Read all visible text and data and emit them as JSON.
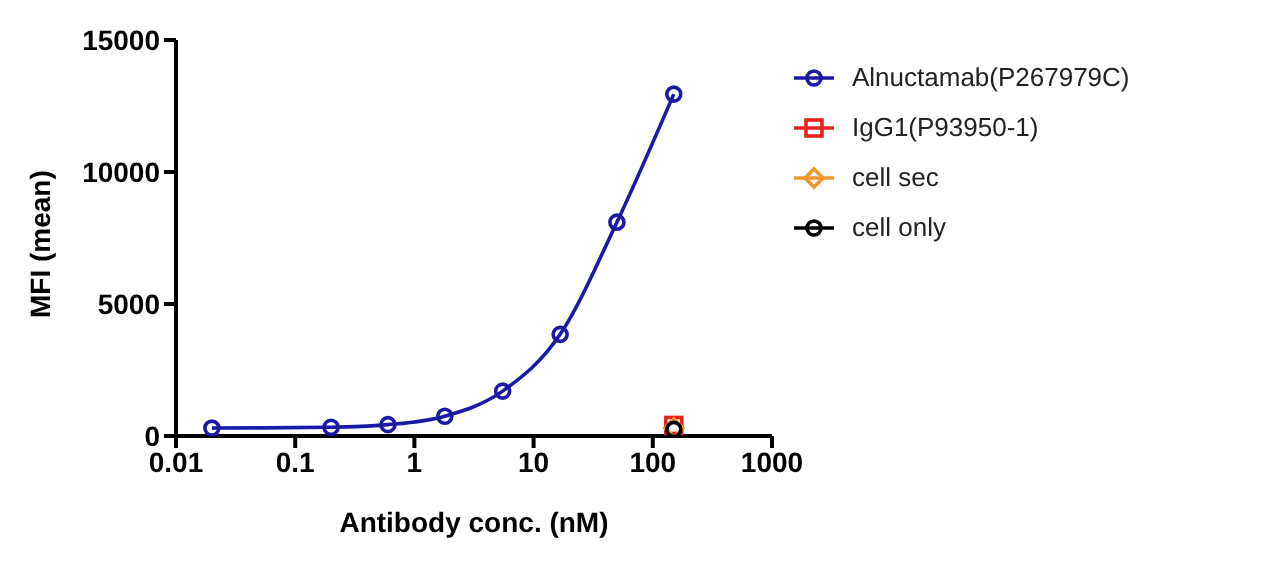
{
  "chart_data": {
    "type": "line",
    "xlabel": "Antibody conc. (nM)",
    "ylabel": "MFI (mean)",
    "log": "x",
    "xlim": [
      0.01,
      1000
    ],
    "xticks": [
      0.01,
      0.1,
      1,
      10,
      100,
      1000
    ],
    "ylim": [
      0,
      15000
    ],
    "yticks": [
      0,
      5000,
      10000,
      15000
    ],
    "grid": false,
    "legend": "right",
    "line_style": "solid",
    "series": [
      {
        "name": "Alnuctamab(P267979C)",
        "color": "#1a1aa6",
        "marker": "circle",
        "x": [
          0.02,
          0.2,
          0.6,
          1.8,
          5.5,
          16.7,
          50,
          150
        ],
        "values": [
          300,
          330,
          430,
          750,
          1700,
          3850,
          8100,
          12950
        ]
      },
      {
        "name": "IgG1(P93950-1)",
        "color": "#e8231d",
        "marker": "square",
        "x": [
          150
        ],
        "values": [
          400
        ]
      },
      {
        "name": "cell sec",
        "color": "#f0962a",
        "marker": "diamond",
        "x": [
          150
        ],
        "values": [
          300
        ]
      },
      {
        "name": "cell only",
        "color": "#000000",
        "marker": "circle",
        "x": [
          150
        ],
        "values": [
          250
        ]
      }
    ]
  }
}
